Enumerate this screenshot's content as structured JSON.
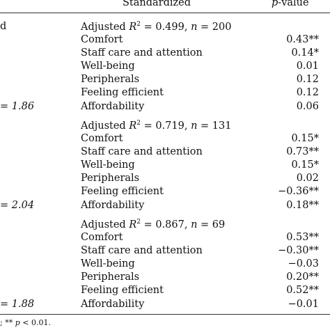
{
  "header": {
    "col_standardized": "Standardized",
    "col_p_prefix": "p",
    "col_p_suffix": "-value"
  },
  "left_fragments": {
    "top": "d",
    "block1": "= 1.86",
    "block2": "= 2.04",
    "block3": "= 1.88"
  },
  "blocks": [
    {
      "adjusted_prefix": "Adjusted ",
      "adjusted_R": "R",
      "adjusted_sup": "2",
      "adjusted_mid": " = 0.499, ",
      "adjusted_n": "n",
      "adjusted_suffix": " = 200",
      "rows": [
        {
          "label": "Comfort",
          "value": "0.43**"
        },
        {
          "label": "Staff care and attention",
          "value": "0.14*"
        },
        {
          "label": "Well-being",
          "value": "0.01"
        },
        {
          "label": "Peripherals",
          "value": "0.12"
        },
        {
          "label": "Feeling efficient",
          "value": "0.12"
        },
        {
          "label": "Affordability",
          "value": "0.06"
        }
      ]
    },
    {
      "adjusted_prefix": "Adjusted ",
      "adjusted_R": "R",
      "adjusted_sup": "2",
      "adjusted_mid": " = 0.719, ",
      "adjusted_n": "n",
      "adjusted_suffix": " = 131",
      "rows": [
        {
          "label": "Comfort",
          "value": "0.15*"
        },
        {
          "label": "Staff care and attention",
          "value": "0.73**"
        },
        {
          "label": "Well-being",
          "value": "0.15*"
        },
        {
          "label": "Peripherals",
          "value": "0.02"
        },
        {
          "label": "Feeling efficient",
          "value": "−0.36**"
        },
        {
          "label": "Affordability",
          "value": "0.18**"
        }
      ]
    },
    {
      "adjusted_prefix": "Adjusted ",
      "adjusted_R": "R",
      "adjusted_sup": "2",
      "adjusted_mid": " = 0.867, ",
      "adjusted_n": "n",
      "adjusted_suffix": " = 69",
      "rows": [
        {
          "label": "Comfort",
          "value": "0.53**"
        },
        {
          "label": "Staff care and attention",
          "value": "−0.30**"
        },
        {
          "label": "Well-being",
          "value": "−0.03"
        },
        {
          "label": "Peripherals",
          "value": "0.20**"
        },
        {
          "label": "Feeling efficient",
          "value": "0.52**"
        },
        {
          "label": "Affordability",
          "value": "−0.01"
        }
      ]
    }
  ],
  "footnote": {
    "prefix": "; ** ",
    "p": "p",
    "suffix": " < 0.01."
  }
}
